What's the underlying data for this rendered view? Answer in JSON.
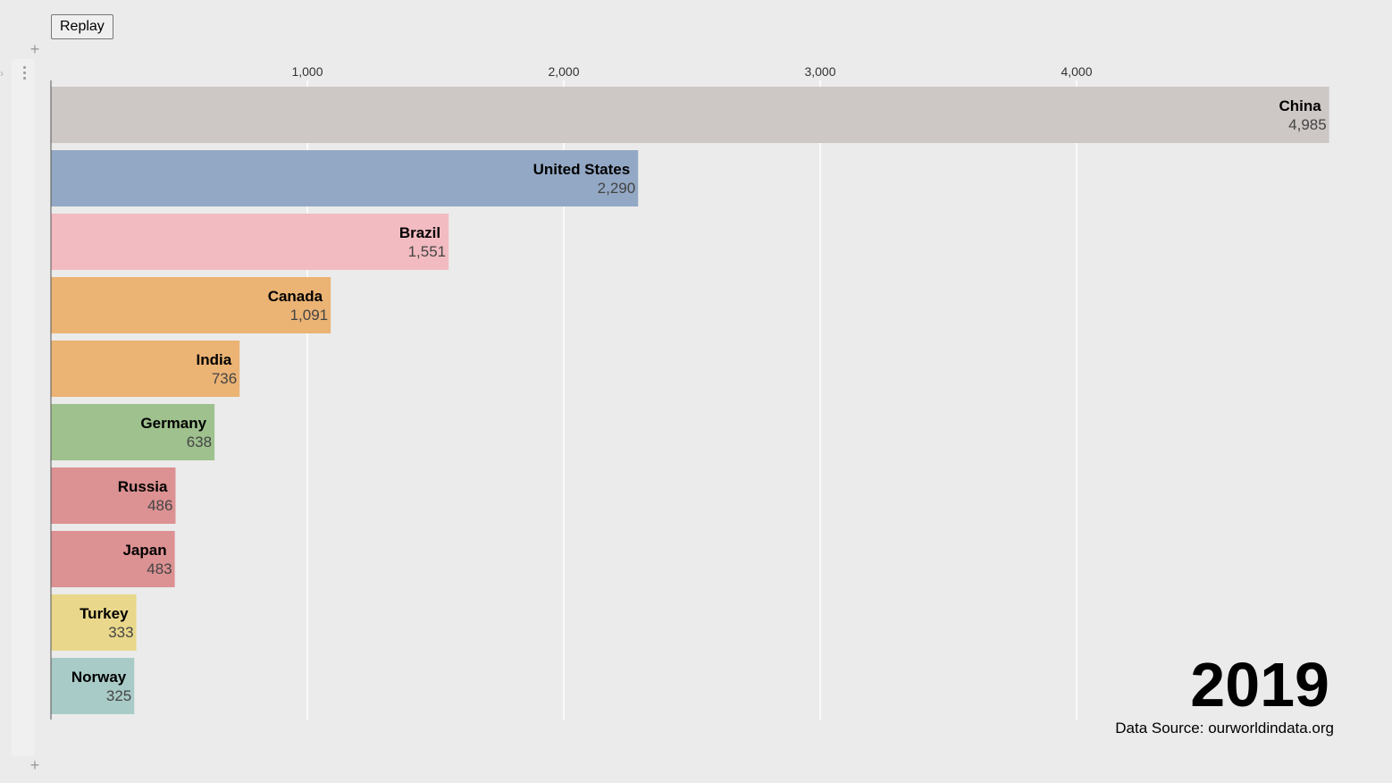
{
  "controls": {
    "replay_label": "Replay"
  },
  "colors": {
    "background": "#ebebeb",
    "gridline": "#ffffff",
    "axis": "#555555"
  },
  "chart_data": {
    "type": "bar",
    "orientation": "horizontal",
    "title": "",
    "xlabel": "",
    "ylabel": "",
    "year": "2019",
    "source": "Data Source: ourworldindata.org",
    "grid": true,
    "xlim": [
      0,
      5000
    ],
    "x_ticks": [
      1000,
      2000,
      3000,
      4000
    ],
    "x_tick_labels": [
      "1,000",
      "2,000",
      "3,000",
      "4,000"
    ],
    "bars": [
      {
        "category": "China",
        "value": 4985,
        "value_label": "4,985",
        "color": "#cdc8c5"
      },
      {
        "category": "United States",
        "value": 2290,
        "value_label": "2,290",
        "color": "#93a8c4"
      },
      {
        "category": "Brazil",
        "value": 1551,
        "value_label": "1,551",
        "color": "#f2bbc1"
      },
      {
        "category": "Canada",
        "value": 1091,
        "value_label": "1,091",
        "color": "#ebb374"
      },
      {
        "category": "India",
        "value": 736,
        "value_label": "736",
        "color": "#ebb374"
      },
      {
        "category": "Germany",
        "value": 638,
        "value_label": "638",
        "color": "#9ec18e"
      },
      {
        "category": "Russia",
        "value": 486,
        "value_label": "486",
        "color": "#dc9192"
      },
      {
        "category": "Japan",
        "value": 483,
        "value_label": "483",
        "color": "#dc9192"
      },
      {
        "category": "Turkey",
        "value": 333,
        "value_label": "333",
        "color": "#e9d78b"
      },
      {
        "category": "Norway",
        "value": 325,
        "value_label": "325",
        "color": "#a9cbc7"
      }
    ]
  }
}
